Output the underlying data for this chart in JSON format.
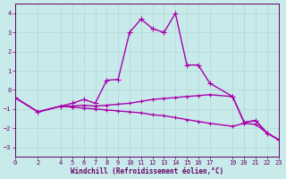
{
  "xlabel": "Windchill (Refroidissement éolien,°C)",
  "background_color": "#c8eaea",
  "grid_color": "#b0d8d8",
  "line_color": "#aa00aa",
  "xlim": [
    0,
    23
  ],
  "ylim": [
    -3.5,
    4.5
  ],
  "yticks": [
    -3,
    -2,
    -1,
    0,
    1,
    2,
    3,
    4
  ],
  "xticks": [
    0,
    2,
    4,
    5,
    6,
    7,
    8,
    9,
    10,
    11,
    12,
    13,
    14,
    15,
    16,
    17,
    19,
    20,
    21,
    22,
    23
  ],
  "series": [
    {
      "x": [
        0,
        2,
        4,
        5,
        6,
        7,
        8,
        9,
        10,
        11,
        12,
        13,
        14,
        15,
        16,
        17,
        19,
        20,
        21,
        22,
        23
      ],
      "y": [
        -0.4,
        -1.15,
        -0.85,
        -0.7,
        -0.5,
        -0.7,
        0.5,
        0.55,
        3.0,
        3.7,
        3.2,
        3.0,
        4.0,
        1.3,
        1.3,
        0.35,
        -0.35,
        -1.7,
        -1.6,
        -2.25,
        -2.6
      ],
      "marker": "+",
      "markersize": 4,
      "linewidth": 1.0
    },
    {
      "x": [
        0,
        2,
        4,
        5,
        6,
        7,
        8,
        9,
        10,
        11,
        12,
        13,
        14,
        15,
        16,
        17,
        19,
        20,
        21,
        22,
        23
      ],
      "y": [
        -0.4,
        -1.15,
        -0.85,
        -0.85,
        -0.8,
        -0.85,
        -0.8,
        -0.75,
        -0.7,
        -0.6,
        -0.5,
        -0.45,
        -0.4,
        -0.35,
        -0.3,
        -0.25,
        -0.35,
        -1.7,
        -1.6,
        -2.25,
        -2.6
      ],
      "marker": "+",
      "markersize": 3,
      "linewidth": 1.0
    },
    {
      "x": [
        0,
        2,
        4,
        5,
        6,
        7,
        8,
        9,
        10,
        11,
        12,
        13,
        14,
        15,
        16,
        17,
        19,
        20,
        21,
        22,
        23
      ],
      "y": [
        -0.4,
        -1.15,
        -0.85,
        -0.9,
        -0.95,
        -1.0,
        -1.05,
        -1.1,
        -1.15,
        -1.2,
        -1.3,
        -1.35,
        -1.45,
        -1.55,
        -1.65,
        -1.75,
        -1.9,
        -1.75,
        -1.8,
        -2.25,
        -2.6
      ],
      "marker": "+",
      "markersize": 3,
      "linewidth": 1.0
    }
  ]
}
